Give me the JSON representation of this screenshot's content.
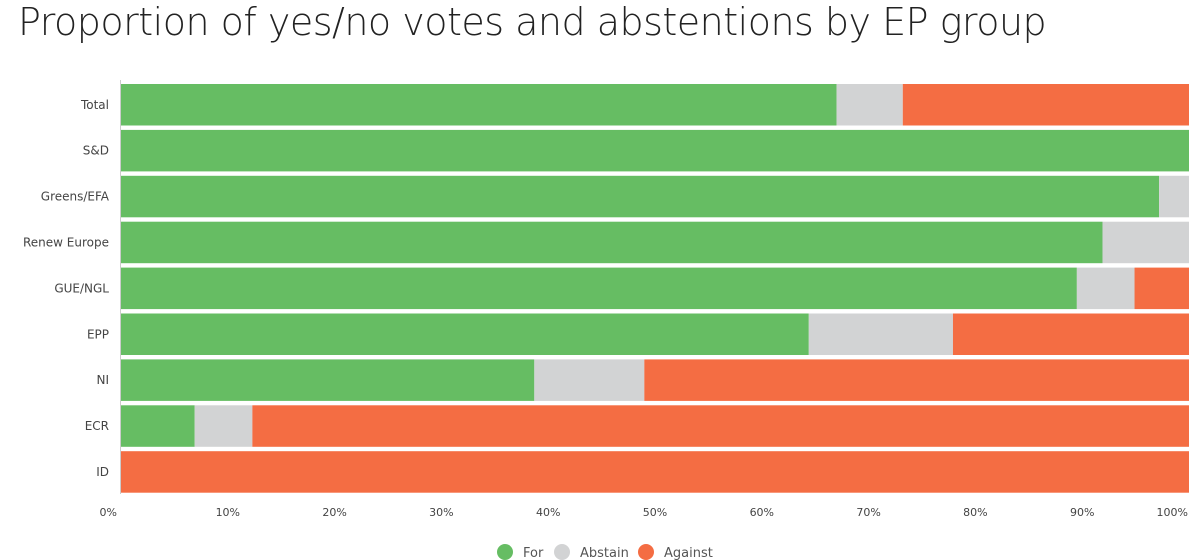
{
  "chart_data": {
    "type": "bar",
    "orientation": "horizontal",
    "stacked": true,
    "title": "Proportion of yes/no votes and abstentions by EP group",
    "categories": [
      "Total",
      "S&D",
      "Greens/EFA",
      "Renew Europe",
      "GUE/NGL",
      "EPP",
      "NI",
      "ECR",
      "ID"
    ],
    "series": [
      {
        "name": "For",
        "color": "#66bd63",
        "values": [
          67,
          100,
          97.2,
          91.9,
          89.5,
          64.4,
          38.7,
          6.9,
          0
        ]
      },
      {
        "name": "Abstain",
        "color": "#d2d3d4",
        "values": [
          6.2,
          0,
          2.8,
          8.1,
          5.4,
          13.5,
          10.3,
          5.4,
          0
        ]
      },
      {
        "name": "Against",
        "color": "#f46d43",
        "values": [
          26.8,
          0,
          0,
          0,
          5.1,
          22.1,
          51,
          87.7,
          100
        ]
      }
    ],
    "xlim": [
      0,
      100
    ],
    "xticks": [
      "0%",
      "10%",
      "20%",
      "30%",
      "40%",
      "50%",
      "60%",
      "70%",
      "80%",
      "90%",
      "100%"
    ],
    "xlabel": "",
    "ylabel": "",
    "legend_position": "bottom-center"
  }
}
